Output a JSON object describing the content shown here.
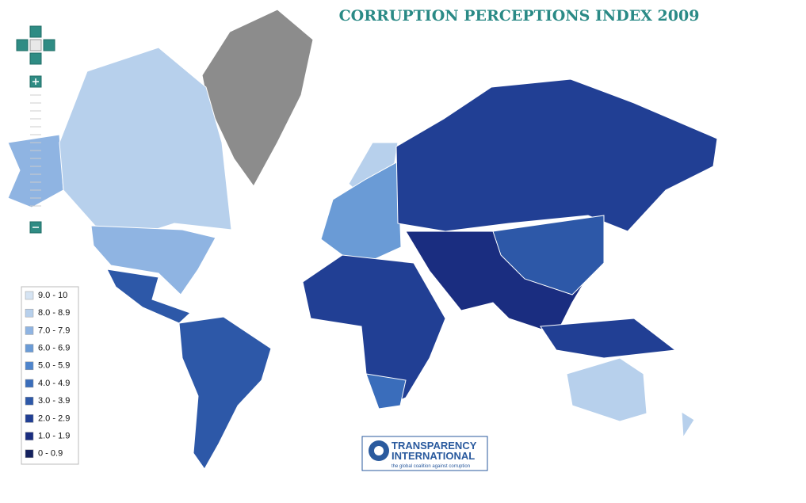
{
  "header": {
    "title": "CORRUPTION PERCEPTIONS INDEX 2009"
  },
  "legend": {
    "items": [
      {
        "label": "9.0 - 10",
        "color": "#d6e4f3"
      },
      {
        "label": "8.0 - 8.9",
        "color": "#b7d0ec"
      },
      {
        "label": "7.0 - 7.9",
        "color": "#8fb4e2"
      },
      {
        "label": "6.0 - 6.9",
        "color": "#6a9bd6"
      },
      {
        "label": "5.0 - 5.9",
        "color": "#4f85cc"
      },
      {
        "label": "4.0 - 4.9",
        "color": "#3a6dbb"
      },
      {
        "label": "3.0 - 3.9",
        "color": "#2d58a8"
      },
      {
        "label": "2.0 - 2.9",
        "color": "#213f94"
      },
      {
        "label": "1.0 - 1.9",
        "color": "#1a2d80"
      },
      {
        "label": "0 - 0.9",
        "color": "#14215e"
      }
    ]
  },
  "logo": {
    "line1": "TRANSPARENCY",
    "line2": "INTERNATIONAL",
    "tagline": "the global coalition against corruption"
  }
}
